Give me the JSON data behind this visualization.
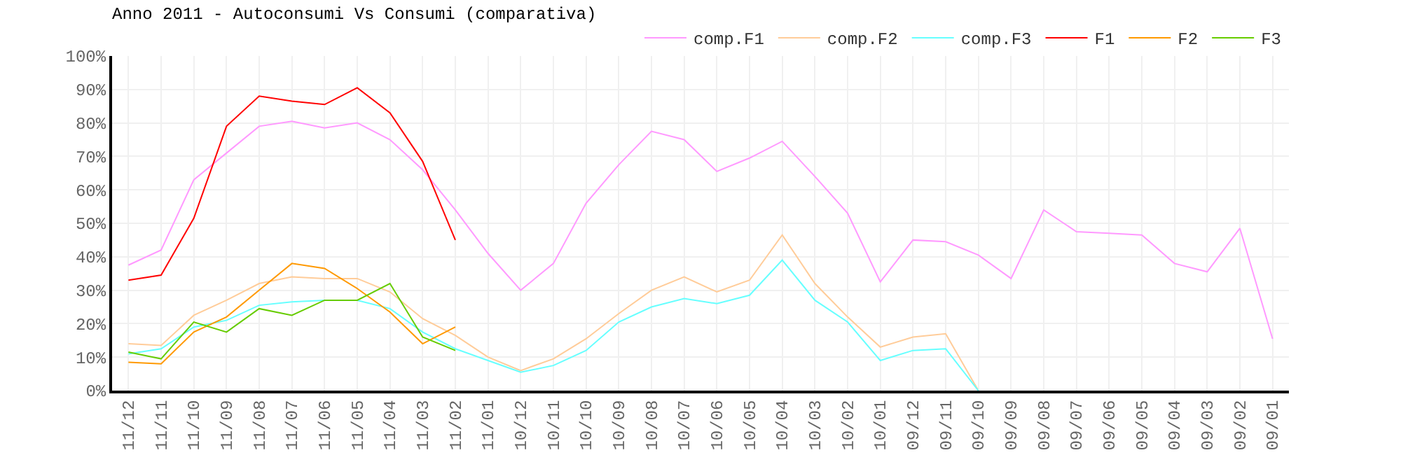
{
  "chart_data": {
    "type": "line",
    "title": "Anno 2011 - Autoconsumi Vs Consumi (comparativa)",
    "categories": [
      "11/12",
      "11/11",
      "11/10",
      "11/09",
      "11/08",
      "11/07",
      "11/06",
      "11/05",
      "11/04",
      "11/03",
      "11/02",
      "11/01",
      "10/12",
      "10/11",
      "10/10",
      "10/09",
      "10/08",
      "10/07",
      "10/06",
      "10/05",
      "10/04",
      "10/03",
      "10/02",
      "10/01",
      "09/12",
      "09/11",
      "09/10",
      "09/09",
      "09/08",
      "09/07",
      "09/06",
      "09/05",
      "09/04",
      "09/03",
      "09/02",
      "09/01"
    ],
    "series": [
      {
        "name": "comp.F1",
        "color": "#ff99ff",
        "values": [
          37.5,
          42,
          63,
          71,
          79,
          80.5,
          78.5,
          80,
          75,
          66,
          54,
          41,
          30,
          38,
          56,
          67.5,
          77.5,
          75,
          65.5,
          69.5,
          74.5,
          64,
          53,
          32.5,
          45,
          44.5,
          40.5,
          33.5,
          54,
          47.5,
          47,
          46.5,
          38,
          35.5,
          48.5,
          15.5
        ]
      },
      {
        "name": "comp.F2",
        "color": "#ffcc99",
        "values": [
          14,
          13.5,
          22.5,
          27,
          32,
          34,
          33.5,
          33.5,
          29.5,
          21.5,
          16.5,
          10,
          6,
          9.5,
          15.5,
          23,
          30,
          34,
          29.5,
          33,
          46.5,
          32,
          22,
          13,
          16,
          17,
          0,
          null,
          null,
          null,
          null,
          null,
          null,
          null,
          null,
          null
        ]
      },
      {
        "name": "comp.F3",
        "color": "#66ffff",
        "values": [
          11,
          12.5,
          19,
          21,
          25.5,
          26.5,
          27,
          27,
          24.5,
          17.5,
          12.5,
          9,
          5.5,
          7.5,
          12,
          20.5,
          25,
          27.5,
          26,
          28.5,
          39,
          27,
          20.5,
          9,
          12,
          12.5,
          0,
          null,
          null,
          null,
          null,
          null,
          null,
          null,
          null,
          null
        ]
      },
      {
        "name": "F1",
        "color": "#ff0000",
        "values": [
          33,
          34.5,
          51.5,
          79,
          88,
          86.5,
          85.5,
          90.5,
          83,
          68.5,
          45,
          null,
          null,
          null,
          null,
          null,
          null,
          null,
          null,
          null,
          null,
          null,
          null,
          null,
          null,
          null,
          null,
          null,
          null,
          null,
          null,
          null,
          null,
          null,
          null,
          null
        ]
      },
      {
        "name": "F2",
        "color": "#ff9900",
        "values": [
          8.5,
          8,
          17.5,
          22,
          30,
          38,
          36.5,
          30.5,
          23.5,
          14,
          19,
          null,
          null,
          null,
          null,
          null,
          null,
          null,
          null,
          null,
          null,
          null,
          null,
          null,
          null,
          null,
          null,
          null,
          null,
          null,
          null,
          null,
          null,
          null,
          null,
          null
        ]
      },
      {
        "name": "F3",
        "color": "#66cc00",
        "values": [
          11.5,
          9.5,
          20.5,
          17.5,
          24.5,
          22.5,
          27,
          27,
          32,
          16,
          12,
          null,
          null,
          null,
          null,
          null,
          null,
          null,
          null,
          null,
          null,
          null,
          null,
          null,
          null,
          null,
          null,
          null,
          null,
          null,
          null,
          null,
          null,
          null,
          null,
          null
        ]
      }
    ],
    "ylim": [
      0,
      100
    ],
    "yticks": [
      {
        "value": 0,
        "label": "0%"
      },
      {
        "value": 10,
        "label": "10%"
      },
      {
        "value": 20,
        "label": "20%"
      },
      {
        "value": 30,
        "label": "30%"
      },
      {
        "value": 40,
        "label": "40%"
      },
      {
        "value": 50,
        "label": "50%"
      },
      {
        "value": 60,
        "label": "60%"
      },
      {
        "value": 70,
        "label": "70%"
      },
      {
        "value": 80,
        "label": "80%"
      },
      {
        "value": 90,
        "label": "90%"
      },
      {
        "value": 100,
        "label": "100%"
      }
    ],
    "grid": true,
    "legend": "top right",
    "marker": "none",
    "line_style": "solid"
  }
}
